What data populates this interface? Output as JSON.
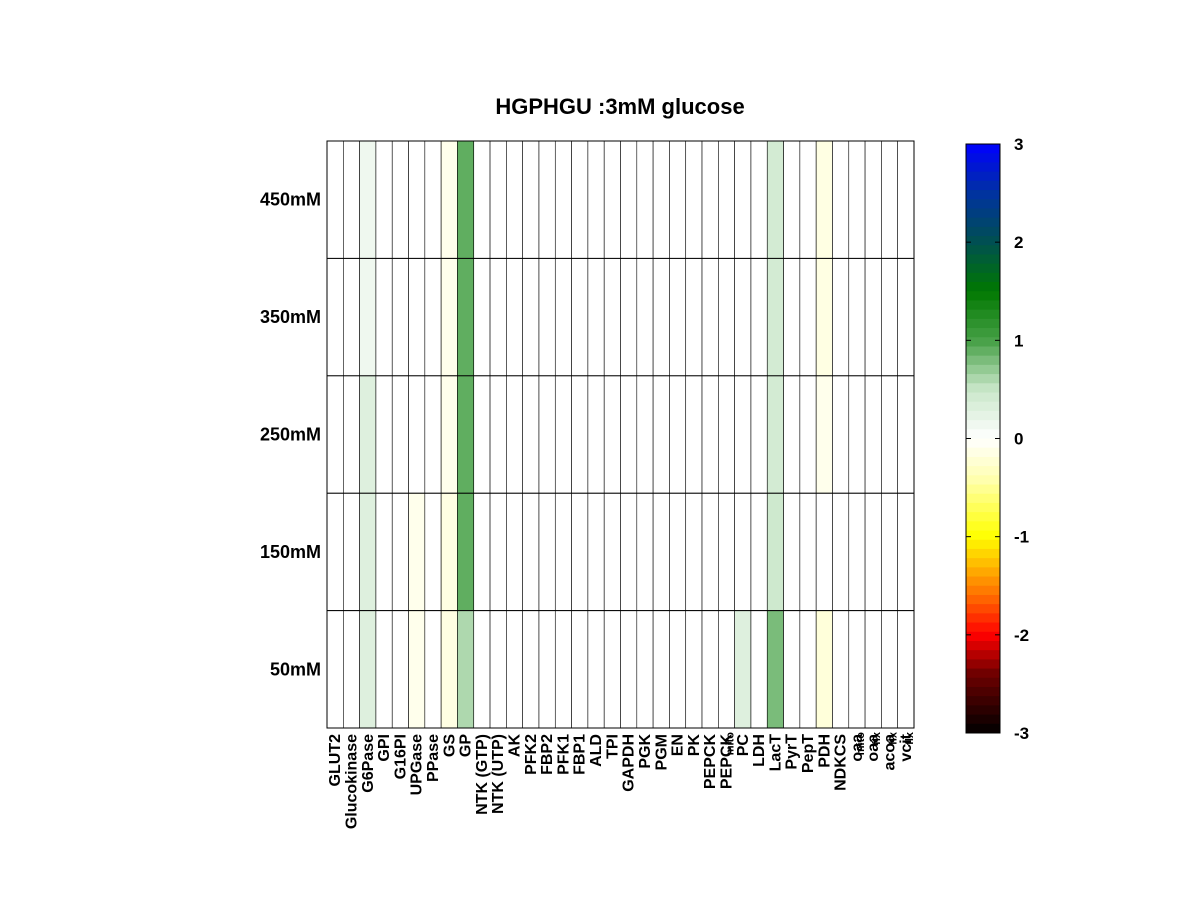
{
  "chart_data": {
    "type": "heatmap",
    "title": "HGPHGU :3mM glucose",
    "columns": [
      {
        "label": "GLUT2",
        "sub": ""
      },
      {
        "label": "Glucokinase",
        "sub": ""
      },
      {
        "label": "G6Pase",
        "sub": ""
      },
      {
        "label": "GPI",
        "sub": ""
      },
      {
        "label": "G16PI",
        "sub": ""
      },
      {
        "label": "UPGase",
        "sub": ""
      },
      {
        "label": "PPase",
        "sub": ""
      },
      {
        "label": "GS",
        "sub": ""
      },
      {
        "label": "GP",
        "sub": ""
      },
      {
        "label": "NTK (GTP)",
        "sub": ""
      },
      {
        "label": "NTK (UTP)",
        "sub": ""
      },
      {
        "label": "AK",
        "sub": ""
      },
      {
        "label": "PFK2",
        "sub": ""
      },
      {
        "label": "FBP2",
        "sub": ""
      },
      {
        "label": "PFK1",
        "sub": ""
      },
      {
        "label": "FBP1",
        "sub": ""
      },
      {
        "label": "ALD",
        "sub": ""
      },
      {
        "label": "TPI",
        "sub": ""
      },
      {
        "label": "GAPDH",
        "sub": ""
      },
      {
        "label": "PGK",
        "sub": ""
      },
      {
        "label": "PGM",
        "sub": ""
      },
      {
        "label": "EN",
        "sub": ""
      },
      {
        "label": "PK",
        "sub": ""
      },
      {
        "label": "PEPCK",
        "sub": ""
      },
      {
        "label": "PEPCK",
        "sub": "mito"
      },
      {
        "label": "PC",
        "sub": ""
      },
      {
        "label": "LDH",
        "sub": ""
      },
      {
        "label": "LacT",
        "sub": ""
      },
      {
        "label": "PyrT",
        "sub": ""
      },
      {
        "label": "PepT",
        "sub": ""
      },
      {
        "label": "PDH",
        "sub": ""
      },
      {
        "label": "NDKCS",
        "sub": ""
      },
      {
        "label": "oaa",
        "sub": "mito"
      },
      {
        "label": "oaa",
        "sub": "flx"
      },
      {
        "label": "acoa",
        "sub": "flx"
      },
      {
        "label": "vcit",
        "sub": "flx"
      }
    ],
    "rows": [
      "450mM",
      "350mM",
      "250mM",
      "150mM",
      "50mM"
    ],
    "values": [
      [
        0,
        0,
        0.15,
        0,
        0,
        0,
        0,
        -0.1,
        0.9,
        0,
        0,
        0,
        0,
        0,
        0,
        0,
        0,
        0,
        0,
        0,
        0,
        0,
        0,
        0,
        0,
        0,
        0,
        0.4,
        0,
        0,
        -0.15,
        0,
        0,
        0,
        0,
        0
      ],
      [
        0,
        0,
        0.15,
        0,
        0,
        0,
        0,
        -0.1,
        0.9,
        0,
        0,
        0,
        0,
        0,
        0,
        0,
        0,
        0,
        0,
        0,
        0,
        0,
        0,
        0,
        0,
        0,
        0,
        0.4,
        0,
        0,
        -0.15,
        0,
        0,
        0,
        0,
        0
      ],
      [
        0,
        0,
        0.3,
        0,
        0,
        0,
        0,
        -0.1,
        0.9,
        0,
        0,
        0,
        0,
        0,
        0,
        0,
        0,
        0,
        0,
        0,
        0,
        0,
        0,
        0,
        0,
        0,
        0,
        0.4,
        0,
        0,
        -0.1,
        0,
        0,
        0,
        0,
        0
      ],
      [
        0,
        0,
        0.3,
        0,
        0,
        -0.1,
        0,
        -0.15,
        0.9,
        0,
        0,
        0,
        0,
        0,
        0,
        0,
        0,
        0,
        0,
        0,
        0,
        0,
        0,
        0,
        0,
        0,
        0,
        0.45,
        0,
        0,
        0,
        0,
        0,
        0,
        0,
        0
      ],
      [
        0,
        0,
        0.3,
        0,
        0,
        -0.1,
        0,
        -0.15,
        0.6,
        0,
        0,
        0,
        0,
        0,
        0,
        0,
        0,
        0,
        0,
        0,
        0,
        0,
        0,
        0,
        0,
        0.3,
        0,
        0.8,
        0,
        0,
        -0.2,
        0,
        0,
        0,
        0,
        0
      ]
    ],
    "colorbar": {
      "min": -3,
      "max": 3,
      "ticks": [
        3,
        2,
        1,
        0,
        -1,
        -2,
        -3
      ]
    }
  }
}
